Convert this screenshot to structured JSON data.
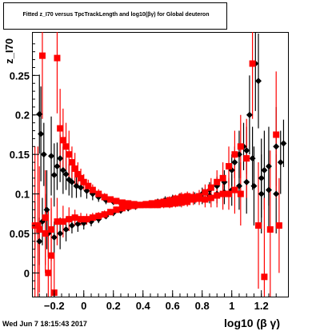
{
  "title": {
    "text": "Fitted z_I70 versus TpcTrackLength and log10(βγ) for Global deuteron"
  },
  "footer": {
    "date": "Wed Jun  7 18:15:43 2017"
  },
  "chart_data": {
    "type": "scatter",
    "title": "Fitted z_I70 versus TpcTrackLength and log10(βγ) for Global deuteron",
    "xlabel": "log10 (β γ)",
    "ylabel": "z_I70",
    "xlim": [
      -0.35,
      1.38
    ],
    "ylim": [
      -0.03,
      0.305
    ],
    "x_ticks": [
      -0.2,
      0,
      0.2,
      0.4,
      0.6,
      0.8,
      1,
      1.2
    ],
    "x_tick_labels": [
      "−0.2",
      "0",
      "0.2",
      "0.4",
      "0.6",
      "0.8",
      "1",
      "1.2"
    ],
    "y_ticks": [
      0,
      0.05,
      0.1,
      0.15,
      0.2,
      0.25
    ],
    "y_tick_labels": [
      "0",
      "0.05",
      "0.1",
      "0.15",
      "0.2",
      "0.25"
    ],
    "grid": false,
    "legend": "none",
    "colors": {
      "black": "#000000",
      "red": "#ff0000"
    },
    "series": [
      {
        "color": "#000000",
        "points": [
          [
            -0.3,
            0.201,
            0.05
          ],
          [
            -0.29,
            0.176,
            0.06
          ],
          [
            -0.27,
            0.15,
            0.04
          ],
          [
            -0.25,
            0.08,
            0.05
          ],
          [
            -0.22,
            0.148,
            0.05
          ],
          [
            -0.2,
            0.124,
            0.04
          ],
          [
            -0.18,
            0.135,
            0.03
          ],
          [
            -0.16,
            0.145,
            0.03
          ],
          [
            -0.14,
            0.13,
            0.03
          ],
          [
            -0.12,
            0.125,
            0.02
          ],
          [
            -0.1,
            0.118,
            0.02
          ],
          [
            -0.08,
            0.115,
            0.02
          ],
          [
            -0.05,
            0.11,
            0.015
          ],
          [
            -0.02,
            0.108,
            0.012
          ],
          [
            0.02,
            0.104,
            0.01
          ],
          [
            0.06,
            0.1,
            0.008
          ],
          [
            0.1,
            0.096,
            0.006
          ],
          [
            0.15,
            0.092,
            0.005
          ],
          [
            0.2,
            0.09,
            0.004
          ],
          [
            0.25,
            0.088,
            0.004
          ],
          [
            0.3,
            0.087,
            0.004
          ],
          [
            0.35,
            0.086,
            0.004
          ],
          [
            0.4,
            0.086,
            0.004
          ],
          [
            0.45,
            0.086,
            0.004
          ],
          [
            0.5,
            0.087,
            0.004
          ],
          [
            0.55,
            0.088,
            0.005
          ],
          [
            0.6,
            0.089,
            0.005
          ],
          [
            0.65,
            0.09,
            0.006
          ],
          [
            0.7,
            0.092,
            0.006
          ],
          [
            0.75,
            0.095,
            0.007
          ],
          [
            0.8,
            0.1,
            0.008
          ],
          [
            0.85,
            0.105,
            0.01
          ],
          [
            0.9,
            0.11,
            0.012
          ],
          [
            0.95,
            0.115,
            0.015
          ],
          [
            1.0,
            0.13,
            0.02
          ],
          [
            1.02,
            0.14,
            0.02
          ],
          [
            1.05,
            0.15,
            0.03
          ],
          [
            1.08,
            0.16,
            0.03
          ],
          [
            1.1,
            0.155,
            0.03
          ],
          [
            1.12,
            0.2,
            0.05
          ],
          [
            1.14,
            0.145,
            0.04
          ],
          [
            1.16,
            0.265,
            0.06
          ],
          [
            1.18,
            0.243,
            0.06
          ],
          [
            1.2,
            0.12,
            0.05
          ],
          [
            1.22,
            0.13,
            0.05
          ],
          [
            1.25,
            0.135,
            0.05
          ],
          [
            1.3,
            0.16,
            0.05
          ],
          [
            1.33,
            0.14,
            0.04
          ],
          [
            1.35,
            0.164,
            0.03
          ],
          [
            -0.33,
            0.06,
            0.03
          ],
          [
            -0.3,
            0.04,
            0.03
          ],
          [
            -0.28,
            0.065,
            0.03
          ],
          [
            -0.24,
            0.05,
            0.03
          ],
          [
            -0.2,
            0.045,
            0.02
          ],
          [
            -0.16,
            0.05,
            0.02
          ],
          [
            -0.12,
            0.055,
            0.015
          ],
          [
            -0.08,
            0.06,
            0.01
          ],
          [
            -0.04,
            0.062,
            0.01
          ],
          [
            0.0,
            0.063,
            0.008
          ],
          [
            0.05,
            0.065,
            0.006
          ],
          [
            0.1,
            0.068,
            0.005
          ],
          [
            0.15,
            0.072,
            0.004
          ],
          [
            0.2,
            0.076,
            0.004
          ],
          [
            0.25,
            0.079,
            0.004
          ],
          [
            0.3,
            0.082,
            0.004
          ],
          [
            0.35,
            0.084,
            0.004
          ],
          [
            0.4,
            0.086,
            0.004
          ],
          [
            0.45,
            0.088,
            0.004
          ],
          [
            0.5,
            0.09,
            0.004
          ],
          [
            0.55,
            0.092,
            0.005
          ],
          [
            0.6,
            0.094,
            0.005
          ],
          [
            0.65,
            0.095,
            0.006
          ],
          [
            0.7,
            0.095,
            0.006
          ],
          [
            0.75,
            0.094,
            0.007
          ],
          [
            0.8,
            0.095,
            0.008
          ],
          [
            0.85,
            0.098,
            0.01
          ],
          [
            0.9,
            0.1,
            0.012
          ],
          [
            0.95,
            0.102,
            0.015
          ],
          [
            1.0,
            0.105,
            0.02
          ],
          [
            1.05,
            0.11,
            0.03
          ],
          [
            1.1,
            0.115,
            0.04
          ],
          [
            1.15,
            0.11,
            0.05
          ],
          [
            1.2,
            0.1,
            0.05
          ],
          [
            1.25,
            0.105,
            0.05
          ],
          [
            1.3,
            0.1,
            0.05
          ]
        ]
      },
      {
        "color": "#ff0000",
        "points": [
          [
            -0.31,
            0.06,
            0.1
          ],
          [
            -0.28,
            0.275,
            0.08
          ],
          [
            -0.26,
            0.07,
            0.06
          ],
          [
            -0.24,
            0.0,
            0.08
          ],
          [
            -0.22,
            0.022,
            0.06
          ],
          [
            -0.2,
            -0.025,
            0.05
          ],
          [
            -0.18,
            0.272,
            0.07
          ],
          [
            -0.16,
            0.183,
            0.05
          ],
          [
            -0.14,
            0.168,
            0.04
          ],
          [
            -0.12,
            0.16,
            0.03
          ],
          [
            -0.1,
            0.15,
            0.03
          ],
          [
            -0.08,
            0.14,
            0.02
          ],
          [
            -0.06,
            0.132,
            0.02
          ],
          [
            -0.04,
            0.125,
            0.015
          ],
          [
            -0.02,
            0.12,
            0.012
          ],
          [
            0.0,
            0.115,
            0.01
          ],
          [
            0.03,
            0.11,
            0.008
          ],
          [
            0.06,
            0.105,
            0.007
          ],
          [
            0.1,
            0.1,
            0.006
          ],
          [
            0.14,
            0.096,
            0.005
          ],
          [
            0.18,
            0.093,
            0.004
          ],
          [
            0.22,
            0.091,
            0.004
          ],
          [
            0.26,
            0.089,
            0.004
          ],
          [
            0.3,
            0.088,
            0.004
          ],
          [
            0.34,
            0.087,
            0.004
          ],
          [
            0.38,
            0.086,
            0.004
          ],
          [
            0.42,
            0.086,
            0.004
          ],
          [
            0.46,
            0.086,
            0.004
          ],
          [
            0.5,
            0.086,
            0.004
          ],
          [
            0.54,
            0.087,
            0.005
          ],
          [
            0.58,
            0.087,
            0.005
          ],
          [
            0.62,
            0.088,
            0.005
          ],
          [
            0.66,
            0.089,
            0.006
          ],
          [
            0.7,
            0.09,
            0.006
          ],
          [
            0.74,
            0.093,
            0.007
          ],
          [
            0.78,
            0.097,
            0.008
          ],
          [
            0.82,
            0.102,
            0.01
          ],
          [
            0.86,
            0.108,
            0.012
          ],
          [
            0.9,
            0.115,
            0.015
          ],
          [
            0.94,
            0.12,
            0.02
          ],
          [
            0.98,
            0.135,
            0.025
          ],
          [
            1.02,
            0.15,
            0.03
          ],
          [
            1.06,
            0.16,
            0.04
          ],
          [
            1.1,
            0.145,
            0.05
          ],
          [
            1.14,
            0.265,
            0.07
          ],
          [
            1.18,
            0.06,
            0.08
          ],
          [
            1.22,
            -0.005,
            0.1
          ],
          [
            1.26,
            0.055,
            0.1
          ],
          [
            1.3,
            0.175,
            0.08
          ],
          [
            1.32,
            0.06,
            0.06
          ],
          [
            -0.33,
            0.06,
            0.1
          ],
          [
            -0.3,
            0.055,
            0.08
          ],
          [
            -0.26,
            0.05,
            0.05
          ],
          [
            -0.22,
            0.055,
            0.04
          ],
          [
            -0.18,
            0.065,
            0.03
          ],
          [
            -0.14,
            0.065,
            0.02
          ],
          [
            -0.1,
            0.068,
            0.015
          ],
          [
            -0.06,
            0.07,
            0.01
          ],
          [
            -0.02,
            0.068,
            0.008
          ],
          [
            0.02,
            0.068,
            0.007
          ],
          [
            0.06,
            0.07,
            0.006
          ],
          [
            0.1,
            0.072,
            0.005
          ],
          [
            0.14,
            0.074,
            0.005
          ],
          [
            0.18,
            0.077,
            0.004
          ],
          [
            0.22,
            0.08,
            0.004
          ],
          [
            0.26,
            0.082,
            0.004
          ],
          [
            0.3,
            0.084,
            0.004
          ],
          [
            0.34,
            0.085,
            0.004
          ],
          [
            0.38,
            0.086,
            0.004
          ],
          [
            0.42,
            0.087,
            0.004
          ],
          [
            0.46,
            0.088,
            0.004
          ],
          [
            0.5,
            0.089,
            0.004
          ],
          [
            0.54,
            0.09,
            0.005
          ],
          [
            0.58,
            0.092,
            0.005
          ],
          [
            0.62,
            0.094,
            0.005
          ],
          [
            0.66,
            0.096,
            0.006
          ],
          [
            0.7,
            0.097,
            0.006
          ],
          [
            0.74,
            0.096,
            0.007
          ],
          [
            0.78,
            0.094,
            0.008
          ],
          [
            0.82,
            0.093,
            0.01
          ],
          [
            0.86,
            0.095,
            0.012
          ],
          [
            0.9,
            0.098,
            0.015
          ],
          [
            0.94,
            0.1,
            0.02
          ],
          [
            0.98,
            0.1,
            0.02
          ],
          [
            1.02,
            0.105,
            0.03
          ],
          [
            1.06,
            0.1,
            0.04
          ]
        ]
      }
    ]
  }
}
